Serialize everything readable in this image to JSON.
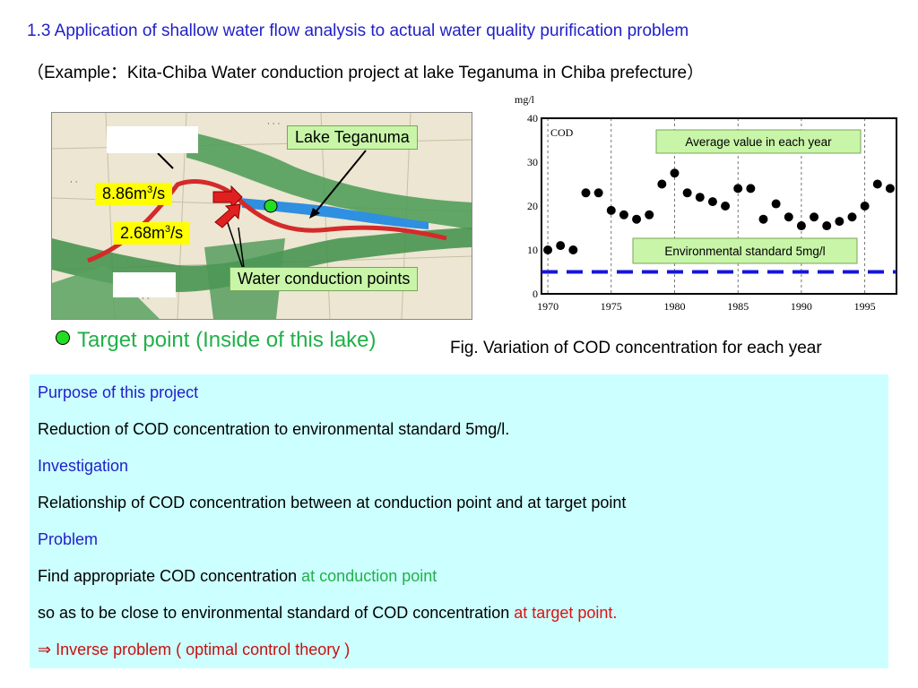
{
  "header": {
    "title": "1.3 Application of shallow water flow analysis to actual water quality purification problem",
    "subtitle": "（Example：Kita-Chiba Water conduction project at lake Teganuma in Chiba prefecture）"
  },
  "map": {
    "lake_label": "Lake Teganuma",
    "flow_high_value": "8.86m",
    "flow_high_unit_sup": "3",
    "flow_high_suffix": "/s",
    "flow_low_value": "2.68m",
    "flow_low_unit_sup": "3",
    "flow_low_suffix": "/s",
    "conduction_label": "Water conduction points",
    "colors": {
      "river": "#d42a2a",
      "lake": "#2f8fe0",
      "terrain": "#3f8f4a",
      "callout_green": "#c8f5a8",
      "callout_yellow": "#ffff00"
    }
  },
  "legend": {
    "target_label": "Target point (Inside of this lake)"
  },
  "figure": {
    "caption": "Fig. Variation of COD concentration for each year"
  },
  "chart_data": {
    "type": "scatter",
    "ylabel": "mg/l",
    "series_label": "COD",
    "ylim": [
      0,
      40
    ],
    "xlim": [
      1969.5,
      1997.5
    ],
    "yticks": [
      0,
      10,
      20,
      30,
      40
    ],
    "xticks": [
      1970,
      1975,
      1980,
      1985,
      1990,
      1995
    ],
    "x": [
      1970,
      1971,
      1972,
      1973,
      1974,
      1975,
      1976,
      1977,
      1978,
      1979,
      1980,
      1981,
      1982,
      1983,
      1984,
      1985,
      1986,
      1987,
      1988,
      1989,
      1990,
      1991,
      1992,
      1993,
      1994,
      1995,
      1996,
      1997
    ],
    "y": [
      10,
      11,
      10,
      23,
      23,
      19,
      18,
      17,
      18,
      25,
      27.5,
      23,
      22,
      21,
      20,
      24,
      24,
      17,
      20.5,
      17.5,
      15.5,
      17.5,
      15.5,
      16.5,
      17.5,
      20,
      25,
      24
    ],
    "standard_value": 5,
    "annotations": {
      "average": "Average value in each year",
      "standard": "Environmental standard 5mg/l"
    },
    "colors": {
      "points": "#000000",
      "standard_line": "#1515d8",
      "average_box": "#c8f5a8",
      "standard_box": "#c8f5a8"
    }
  },
  "panel": {
    "purpose_heading": "Purpose of this project",
    "purpose_text": "Reduction of COD concentration to environmental standard 5mg/l.",
    "investigation_heading": "Investigation",
    "investigation_text": "Relationship of COD concentration between at conduction point and at target point",
    "problem_heading": "Problem",
    "problem_text_a": "Find appropriate COD concentration ",
    "problem_text_a_highlight": "at conduction point",
    "problem_text_b": "so as to be close to environmental standard of COD concentration ",
    "problem_text_b_highlight": "at target point.",
    "conclusion": "⇒ Inverse problem ( optimal control theory )",
    "background": "#ccffff"
  }
}
